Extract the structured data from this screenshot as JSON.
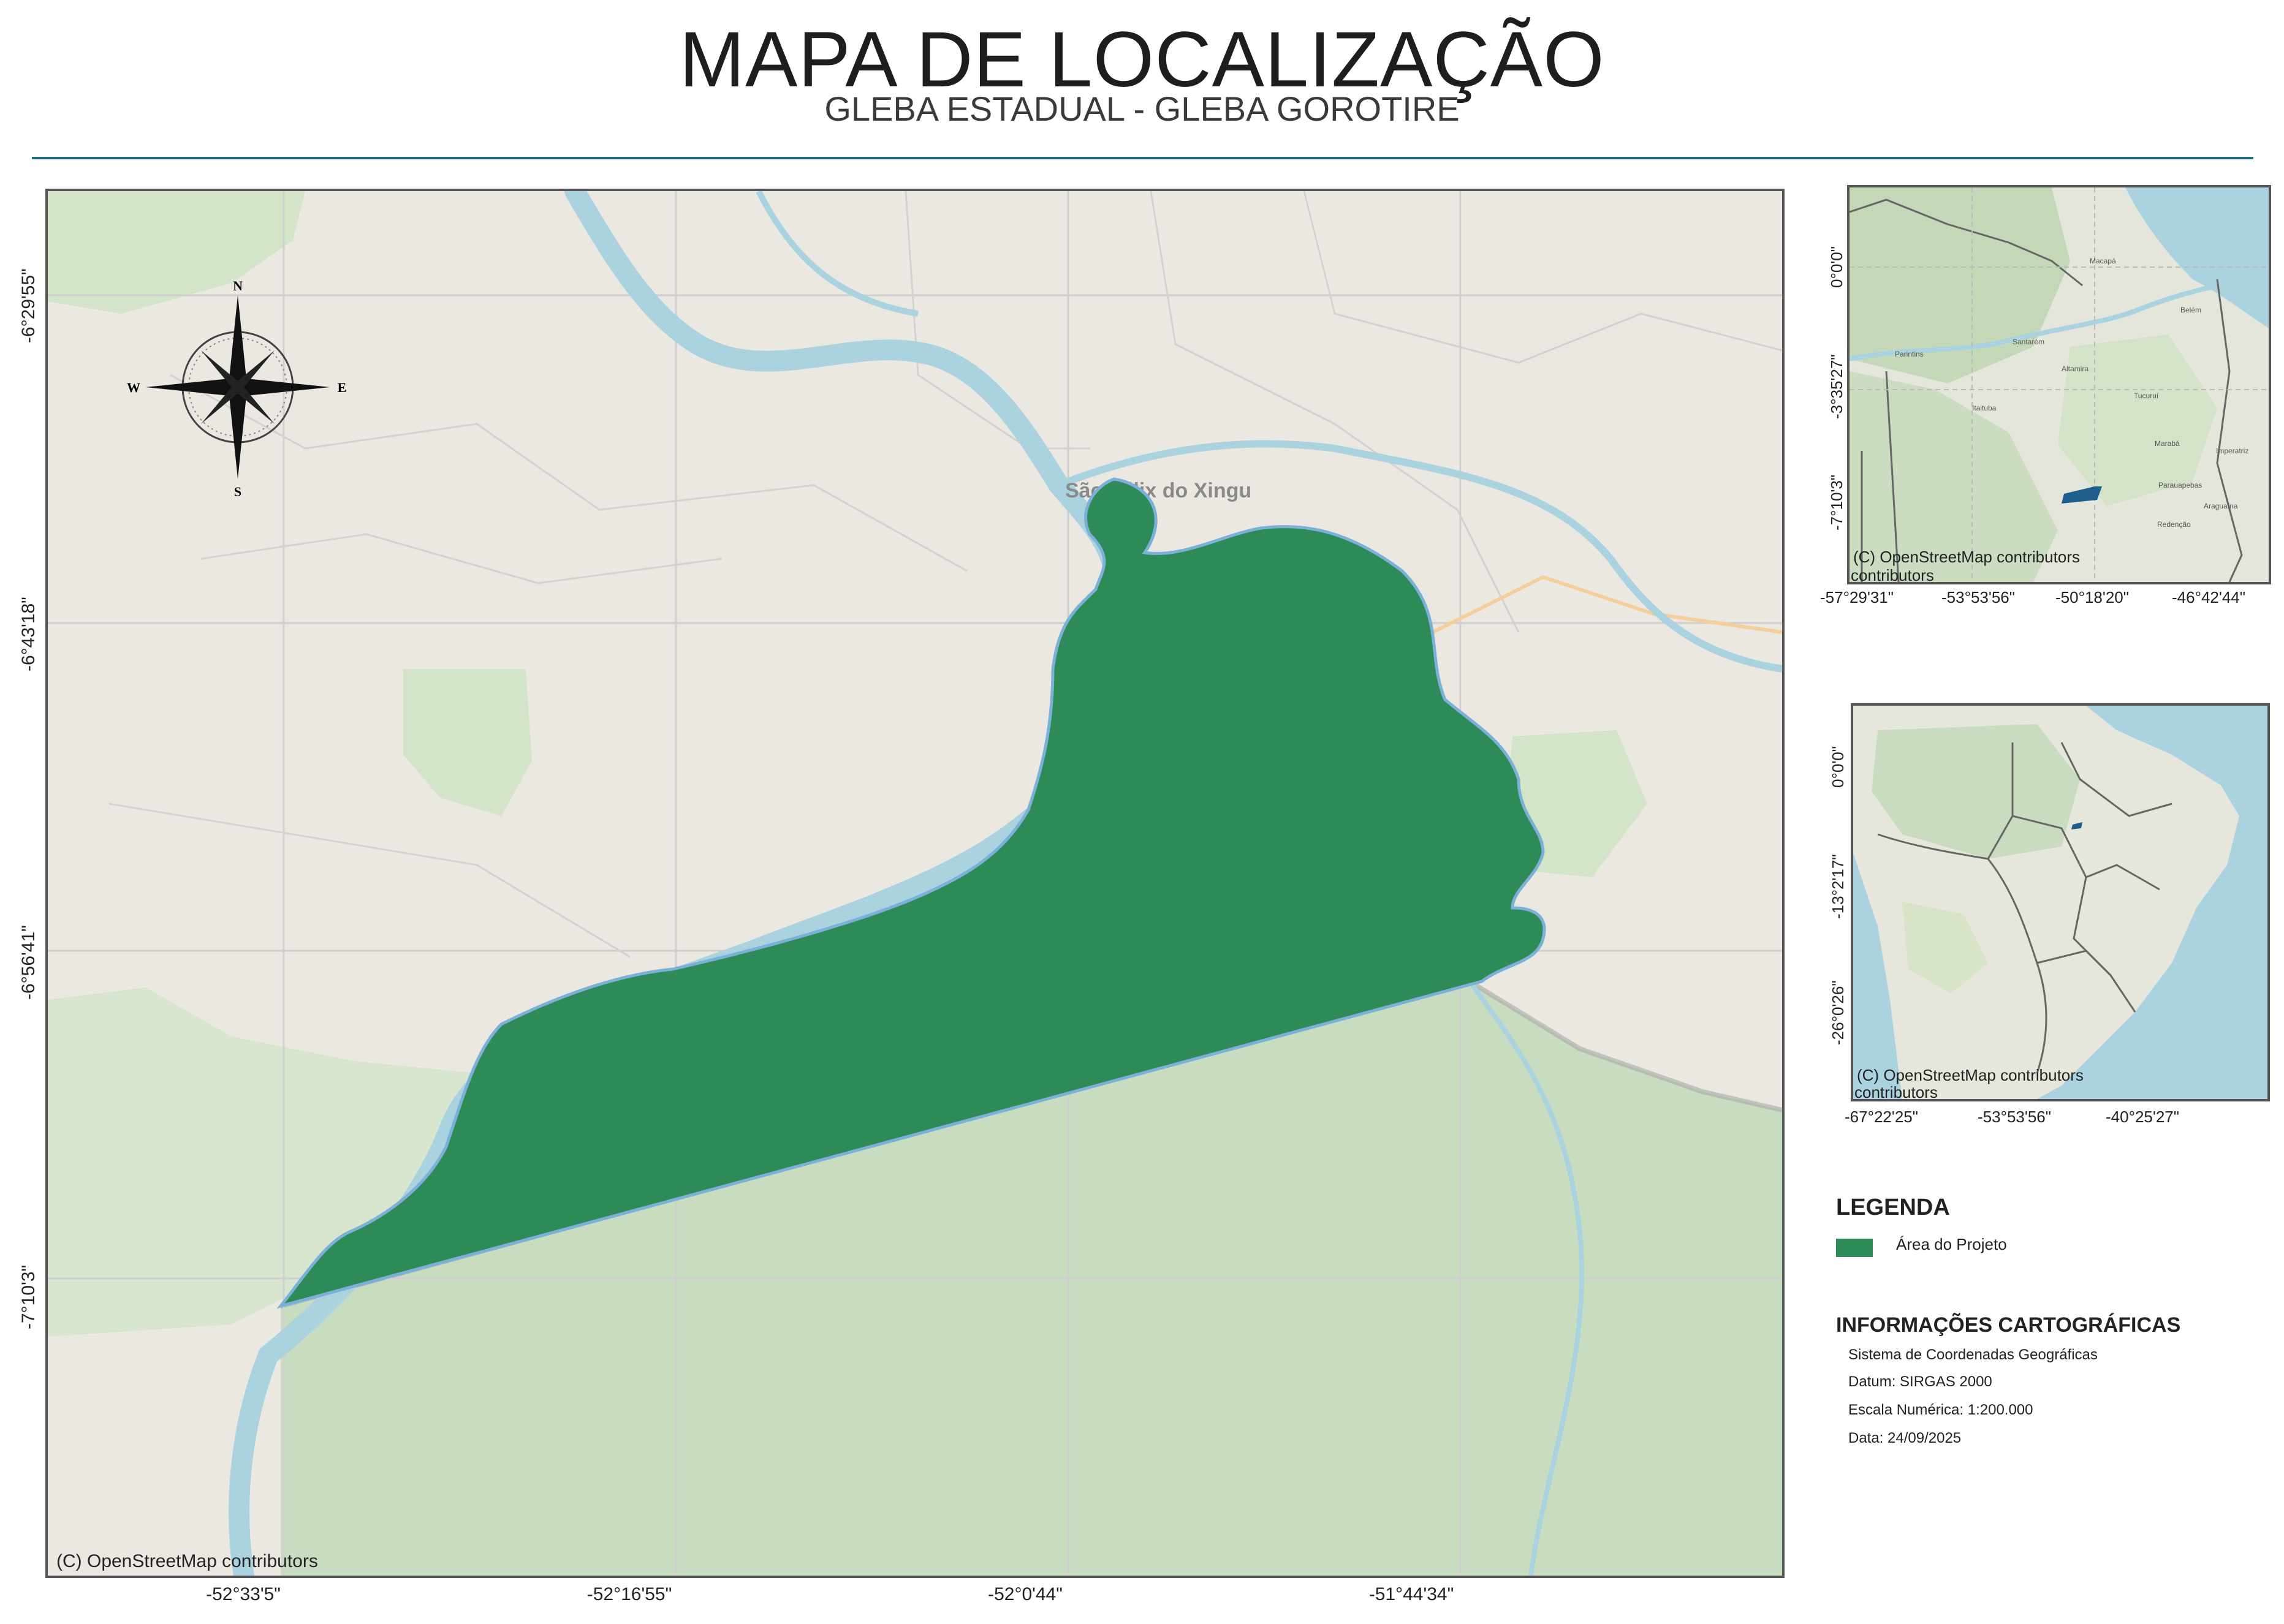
{
  "header": {
    "title": "MAPA DE LOCALIZAÇÃO",
    "subtitle": "GLEBA ESTADUAL - GLEBA GOROTIRE"
  },
  "main_map": {
    "attribution": "(C) OpenStreetMap contributors",
    "place_label": "São Félix do Xingu",
    "y_labels": [
      "-6°29'55\"",
      "-6°43'18\"",
      "-6°56'41\"",
      "-7°10'3\""
    ],
    "x_labels": [
      "-52°33'5\"",
      "-52°16'55\"",
      "-52°0'44\"",
      "-51°44'34\""
    ],
    "compass": {
      "n": "N",
      "s": "S",
      "e": "E",
      "w": "W"
    },
    "colors": {
      "project_area": "#2e8b57",
      "water": "#aad3df",
      "land": "#ebe8e2",
      "forest": "#c8dcc0"
    }
  },
  "inset_region": {
    "attribution": "(C) OpenStreetMap contributors",
    "y_labels": [
      "0°0'0\"",
      "-3°35'27\"",
      "-7°10'3\""
    ],
    "x_labels": [
      "-57°29'31\"",
      "-53°53'56\"",
      "-50°18'20\"",
      "-46°42'44\""
    ],
    "places": [
      "Macapá",
      "Belém",
      "Santarém",
      "Altamira",
      "Marabá",
      "Parauapebas",
      "Redenção",
      "Araguaína",
      "Imperatriz",
      "Tucuruí",
      "Itaituba",
      "Parintins"
    ]
  },
  "inset_country": {
    "attribution": "(C) OpenStreetMap contributors",
    "y_labels": [
      "0°0'0\"",
      "-13°2'17\"",
      "-26°0'26\""
    ],
    "x_labels": [
      "-67°22'25\"",
      "-53°53'56\"",
      "-40°25'27\""
    ]
  },
  "legend": {
    "heading": "LEGENDA",
    "items": [
      {
        "label": "Área do Projeto",
        "color": "#2e8b57"
      }
    ]
  },
  "info": {
    "heading": "INFORMAÇÕES CARTOGRÁFICAS",
    "lines": [
      "Sistema de Coordenadas Geográficas",
      "Datum: SIRGAS 2000",
      "Escala Numérica: 1:200.000",
      "Data: 24/09/2025"
    ]
  }
}
